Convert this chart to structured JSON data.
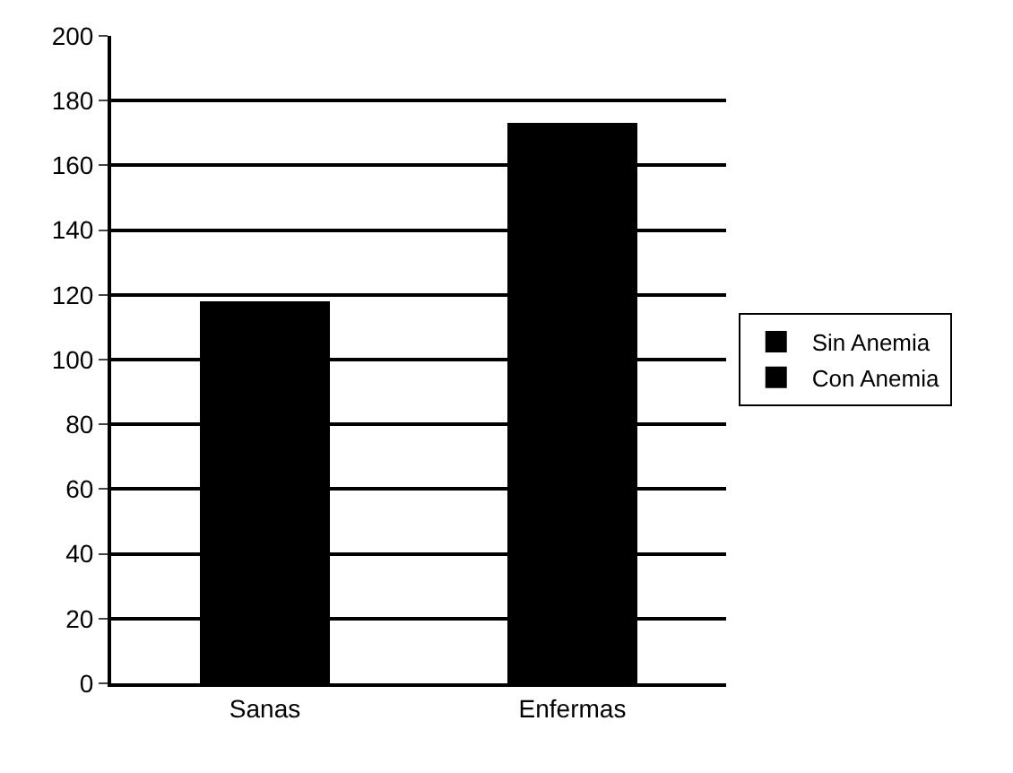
{
  "chart_data": {
    "type": "bar",
    "stacked": true,
    "categories": [
      "Sanas",
      "Enfermas"
    ],
    "series": [
      {
        "name": "Sin Anemia",
        "color": "#000000",
        "values": [
          118,
          null
        ]
      },
      {
        "name": "Con Anemia",
        "color": "#000000",
        "values": [
          null,
          173
        ]
      }
    ],
    "ylim": [
      0,
      200
    ],
    "yticks": [
      0,
      20,
      40,
      60,
      80,
      100,
      120,
      140,
      160,
      180,
      200
    ],
    "grid": "y",
    "legend": "right"
  }
}
